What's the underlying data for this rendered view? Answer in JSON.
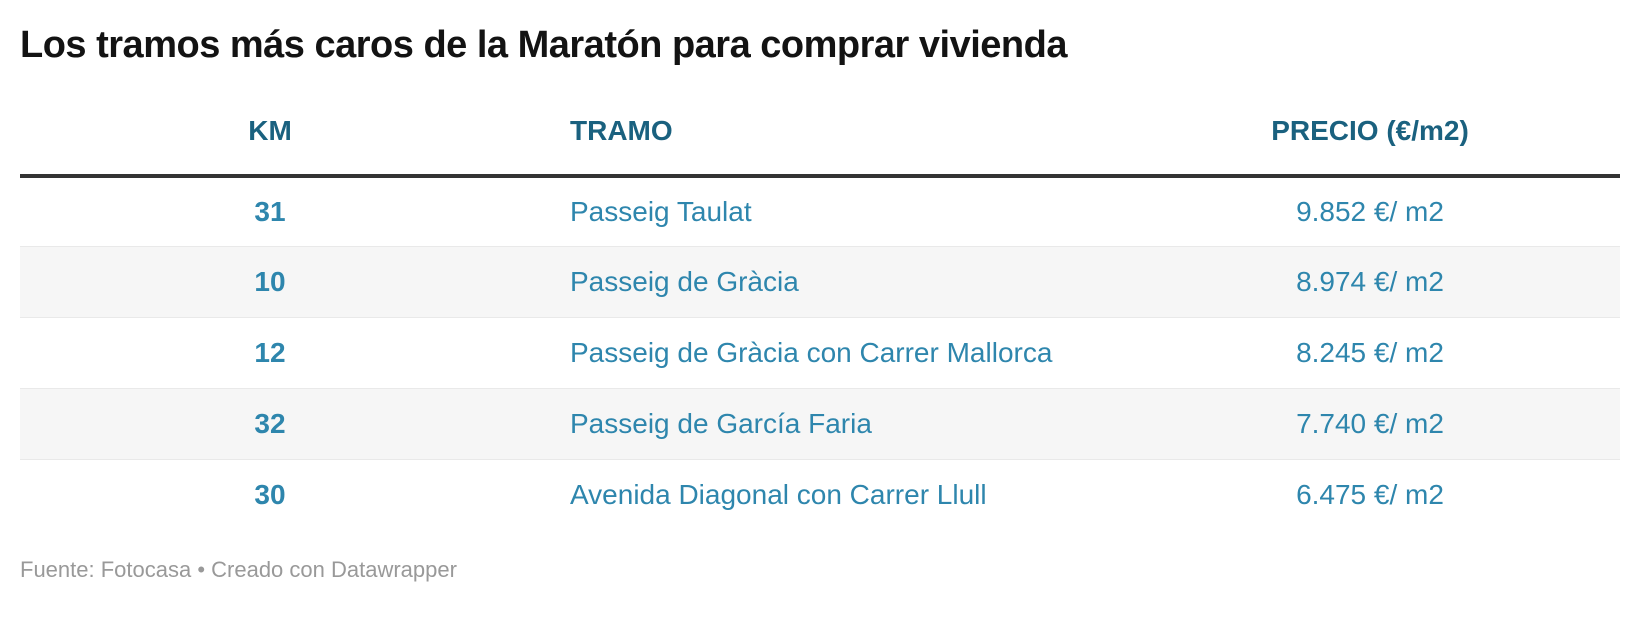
{
  "title": "Los tramos más caros de la Maratón para comprar vivienda",
  "table": {
    "columns": [
      {
        "key": "km",
        "label": "KM",
        "align": "center"
      },
      {
        "key": "tramo",
        "label": "TRAMO",
        "align": "left"
      },
      {
        "key": "precio",
        "label": "PRECIO (€/m2)",
        "align": "center"
      }
    ],
    "rows": [
      {
        "km": "31",
        "tramo": "Passeig Taulat",
        "precio": "9.852 €/ m2"
      },
      {
        "km": "10",
        "tramo": "Passeig de Gràcia",
        "precio": "8.974 €/ m2"
      },
      {
        "km": "12",
        "tramo": "Passeig de Gràcia con Carrer Mallorca",
        "precio": "8.245 €/ m2"
      },
      {
        "km": "32",
        "tramo": "Passeig de García Faria",
        "precio": "7.740 €/ m2"
      },
      {
        "km": "30",
        "tramo": "Avenida Diagonal con Carrer Llull",
        "precio": "6.475 €/ m2"
      }
    ]
  },
  "footer": {
    "text": "Fuente: Fotocasa • Creado con Datawrapper"
  },
  "colors": {
    "title_text": "#131313",
    "header_text": "#1a617f",
    "cell_text": "#2e86ad",
    "header_rule": "#333333",
    "row_separator": "#e9e9e9",
    "zebra_stripe": "#f6f6f6",
    "footer_text": "#999999"
  },
  "chart_data": {
    "type": "table",
    "title": "Los tramos más caros de la Maratón para comprar vivienda",
    "columns": [
      "KM",
      "TRAMO",
      "PRECIO (€/m2)"
    ],
    "rows": [
      [
        31,
        "Passeig Taulat",
        "9.852 €/ m2"
      ],
      [
        10,
        "Passeig de Gràcia",
        "8.974 €/ m2"
      ],
      [
        12,
        "Passeig de Gràcia con Carrer Mallorca",
        "8.245 €/ m2"
      ],
      [
        32,
        "Passeig de García Faria",
        "7.740 €/ m2"
      ],
      [
        30,
        "Avenida Diagonal con Carrer Llull",
        "6.475 €/ m2"
      ]
    ],
    "precio_values_eur_m2": [
      9852,
      8974,
      8245,
      7740,
      6475
    ],
    "source": "Fuente: Fotocasa",
    "tool": "Creado con Datawrapper",
    "layout": {
      "zebra_striping": true,
      "header_rule": true
    }
  }
}
